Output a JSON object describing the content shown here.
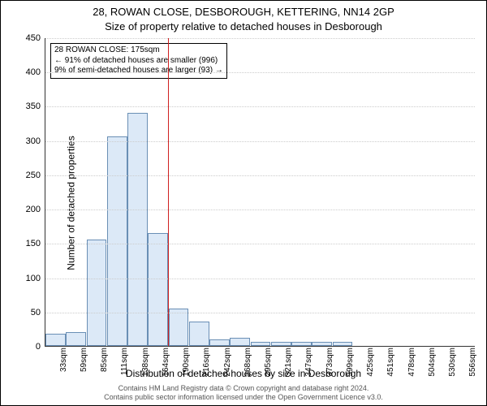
{
  "title1": "28, ROWAN CLOSE, DESBOROUGH, KETTERING, NN14 2GP",
  "title2": "Size of property relative to detached houses in Desborough",
  "ylabel": "Number of detached properties",
  "xlabel": "Distribution of detached houses by size in Desborough",
  "chart": {
    "type": "histogram",
    "ylim": [
      0,
      450
    ],
    "ytick_step": 50,
    "bar_fill": "#dce9f7",
    "bar_border": "#6a8fb5",
    "grid_color": "#cccccc",
    "background_color": "#ffffff",
    "refline_color": "#d02020",
    "refline_x_index": 6,
    "xticks": [
      "33sqm",
      "59sqm",
      "85sqm",
      "111sqm",
      "138sqm",
      "164sqm",
      "190sqm",
      "216sqm",
      "242sqm",
      "268sqm",
      "295sqm",
      "321sqm",
      "347sqm",
      "373sqm",
      "399sqm",
      "425sqm",
      "451sqm",
      "478sqm",
      "504sqm",
      "530sqm",
      "556sqm"
    ],
    "values": [
      18,
      20,
      155,
      305,
      340,
      165,
      55,
      35,
      10,
      12,
      6,
      6,
      6,
      6,
      6,
      0,
      0,
      0,
      0,
      0,
      0
    ]
  },
  "annotation": {
    "line1": "28 ROWAN CLOSE: 175sqm",
    "line2": "← 91% of detached houses are smaller (996)",
    "line3": "9% of semi-detached houses are larger (93) →"
  },
  "footer1": "Contains HM Land Registry data © Crown copyright and database right 2024.",
  "footer2": "Contains public sector information licensed under the Open Government Licence v3.0."
}
